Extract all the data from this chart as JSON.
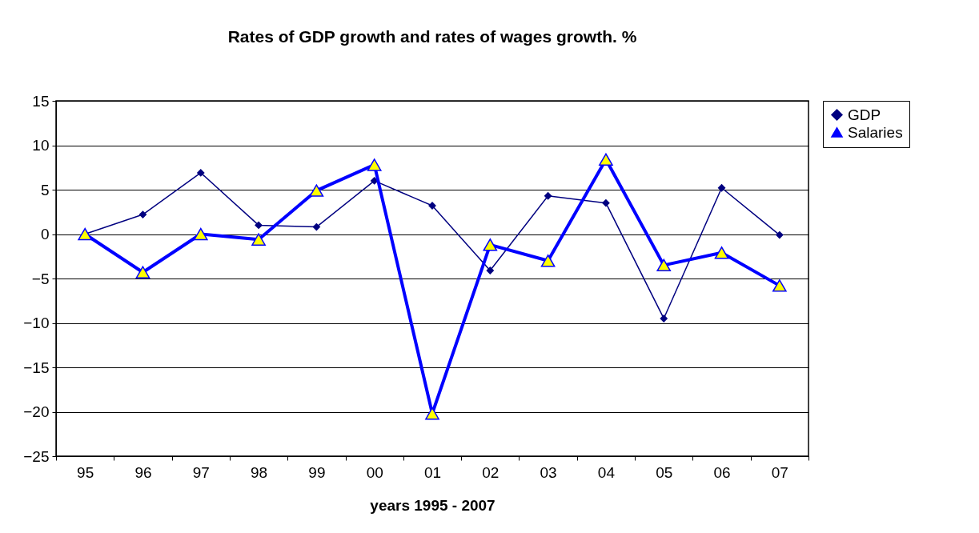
{
  "chart_data": {
    "type": "line",
    "title": "Rates of GDP growth and rates of wages growth. %",
    "xlabel": "years 1995 - 2007",
    "categories": [
      "95",
      "96",
      "97",
      "98",
      "99",
      "00",
      "01",
      "02",
      "03",
      "04",
      "05",
      "06",
      "07"
    ],
    "series": [
      {
        "name": "GDP",
        "color": "#000080",
        "marker": "diamond",
        "values": [
          0,
          2.2,
          6.9,
          1.0,
          0.8,
          6.0,
          3.2,
          -4.1,
          4.3,
          3.5,
          -9.5,
          5.2,
          -0.1
        ]
      },
      {
        "name": "Salaries",
        "color": "#0000ff",
        "marker": "triangle",
        "values": [
          0,
          -4.3,
          0,
          -0.6,
          4.9,
          7.8,
          -20.2,
          -1.2,
          -3.0,
          8.4,
          -3.5,
          -2.1,
          -5.8
        ]
      }
    ],
    "ylim": [
      -25,
      15
    ],
    "yticks": [
      -25,
      -20,
      -15,
      -10,
      -5,
      0,
      5,
      10,
      15
    ],
    "grid": "y",
    "legend": "right"
  }
}
